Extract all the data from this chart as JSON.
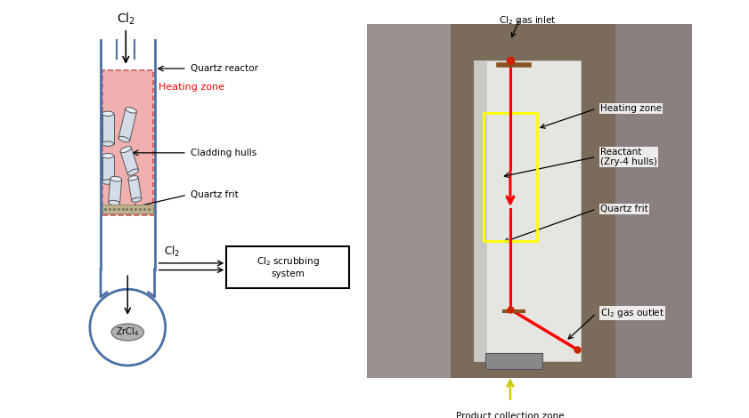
{
  "fig_width": 8.41,
  "fig_height": 4.7,
  "bg_color": "#ffffff",
  "schematic": {
    "cl2_label": "Cl$_2$",
    "quartz_reactor_label": "Quartz reactor",
    "heating_zone_label": "Heating zone",
    "heating_zone_color": "#f0b0b0",
    "heating_zone_border": "#cc5555",
    "cladding_hulls_label": "Cladding hulls",
    "quartz_frit_label": "Quartz frit",
    "cl2_outlet_label": "Cl$_2$",
    "scrubbing_label": "Cl$_2$ scrubbing\nsystem",
    "zrcl4_label": "ZrCl$_4$",
    "tube_color": "#4a6fa5"
  },
  "photo": {
    "cl2_inlet_label": "Cl$_2$ gas inlet",
    "heating_zone_label": "Heating zone",
    "reactant_label": "Reactant\n(Zry-4 hulls)",
    "quartz_frit_label": "Quartz frit",
    "cl2_outlet_label": "Cl$_2$ gas outlet",
    "product_label": "Product collection zone",
    "bg_color": "#8a7a6a",
    "reactor_color": "#d8d8d0",
    "yellow_box": "#ffff00"
  }
}
